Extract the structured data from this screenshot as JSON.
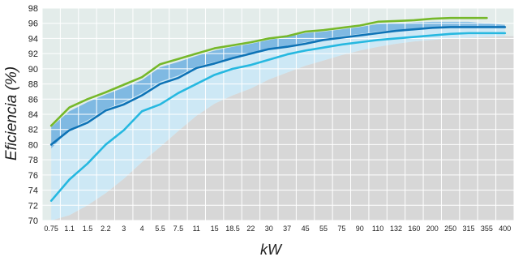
{
  "chart_data": {
    "type": "line",
    "title": "",
    "xlabel": "kW",
    "ylabel": "Eficiencia (%)",
    "categories": [
      "0.75",
      "1.1",
      "1.5",
      "2.2",
      "3",
      "4",
      "5.5",
      "7.5",
      "11",
      "15",
      "18.5",
      "22",
      "30",
      "37",
      "45",
      "55",
      "75",
      "90",
      "110",
      "132",
      "160",
      "200",
      "250",
      "315",
      "355",
      "400"
    ],
    "ylim": [
      70,
      98
    ],
    "yticks": [
      70,
      72,
      74,
      76,
      78,
      80,
      82,
      84,
      86,
      88,
      90,
      92,
      94,
      96,
      98
    ],
    "grid": true,
    "legend": "none",
    "series": [
      {
        "color": "#76b82a",
        "values": [
          82.5,
          84.9,
          86.0,
          86.9,
          87.9,
          88.9,
          90.6,
          91.3,
          92.0,
          92.7,
          93.1,
          93.5,
          94.0,
          94.3,
          94.9,
          95.1,
          95.4,
          95.7,
          96.2,
          96.3,
          96.4,
          96.6,
          96.7,
          96.7,
          96.7,
          null
        ]
      },
      {
        "color": "#0e73b6",
        "values": [
          80.0,
          81.9,
          82.9,
          84.5,
          85.3,
          86.5,
          88.0,
          88.8,
          90.1,
          90.7,
          91.4,
          92.0,
          92.6,
          92.9,
          93.3,
          93.8,
          94.1,
          94.4,
          94.7,
          95.0,
          95.2,
          95.4,
          95.5,
          95.5,
          95.5,
          95.5
        ]
      },
      {
        "color": "#26b8e0",
        "values": [
          72.6,
          75.4,
          77.5,
          80.0,
          81.9,
          84.4,
          85.3,
          86.8,
          88.0,
          89.2,
          90.0,
          90.5,
          91.2,
          91.9,
          92.4,
          92.8,
          93.2,
          93.5,
          93.8,
          94.0,
          94.2,
          94.4,
          94.6,
          94.7,
          94.7,
          94.7
        ]
      }
    ],
    "bands": [
      {
        "name": "",
        "color": "#cde8f5",
        "lower": [
          70,
          70.7,
          72.0,
          73.6,
          75.5,
          77.7,
          79.7,
          81.8,
          83.8,
          85.4,
          86.5,
          87.4,
          88.6,
          89.5,
          90.4,
          91.1,
          91.8,
          92.4,
          92.9,
          93.3,
          93.6,
          93.8,
          94.0,
          94.1,
          94.2,
          94.3
        ],
        "upper": [
          79.5,
          82.0,
          83.2,
          84.7,
          85.6,
          86.8,
          88.3,
          89.1,
          90.3,
          90.9,
          91.5,
          92.1,
          92.7,
          93.0,
          93.5,
          93.9,
          94.3,
          94.6,
          94.9,
          95.1,
          95.3,
          95.5,
          95.6,
          95.6,
          95.6,
          95.6
        ]
      },
      {
        "name": "",
        "color": "#7fb9e2",
        "lower": [
          79.5,
          82.0,
          83.2,
          84.7,
          85.6,
          86.8,
          88.3,
          89.1,
          90.3,
          90.9,
          91.5,
          92.1,
          92.7,
          93.0,
          93.5,
          93.9,
          94.3,
          94.6,
          94.9,
          95.1,
          95.3,
          95.5,
          95.6,
          95.6,
          95.6,
          95.6
        ],
        "upper": [
          82.3,
          84.4,
          85.6,
          86.6,
          87.5,
          88.5,
          90.2,
          90.9,
          91.7,
          92.4,
          92.9,
          93.3,
          93.8,
          94.2,
          94.7,
          94.9,
          95.2,
          95.5,
          95.9,
          96.0,
          96.1,
          96.2,
          96.2,
          96.2,
          96.0,
          95.8
        ]
      }
    ]
  }
}
